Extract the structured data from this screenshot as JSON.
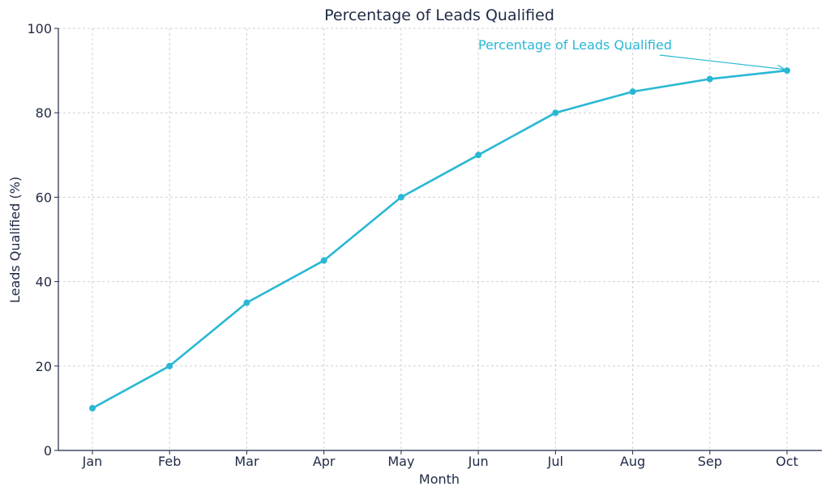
{
  "chart_data": {
    "type": "line",
    "title": "Percentage of Leads Qualified",
    "xlabel": "Month",
    "ylabel": "Leads Qualified (%)",
    "categories": [
      "Jan",
      "Feb",
      "Mar",
      "Apr",
      "May",
      "Jun",
      "Jul",
      "Aug",
      "Sep",
      "Oct"
    ],
    "series": [
      {
        "name": "Percentage of Leads Qualified",
        "values": [
          10,
          20,
          35,
          45,
          60,
          70,
          80,
          85,
          88,
          90
        ]
      }
    ],
    "ylim": [
      0,
      100
    ],
    "yticks": [
      0,
      20,
      40,
      60,
      80,
      100
    ],
    "grid": true,
    "annotation": {
      "text": "Percentage of Leads Qualified",
      "target_category": "Oct",
      "target_value": 90
    },
    "colors": {
      "line": "#29b8d4",
      "axis": "#1f2a44",
      "grid": "#d0d0d0"
    }
  }
}
